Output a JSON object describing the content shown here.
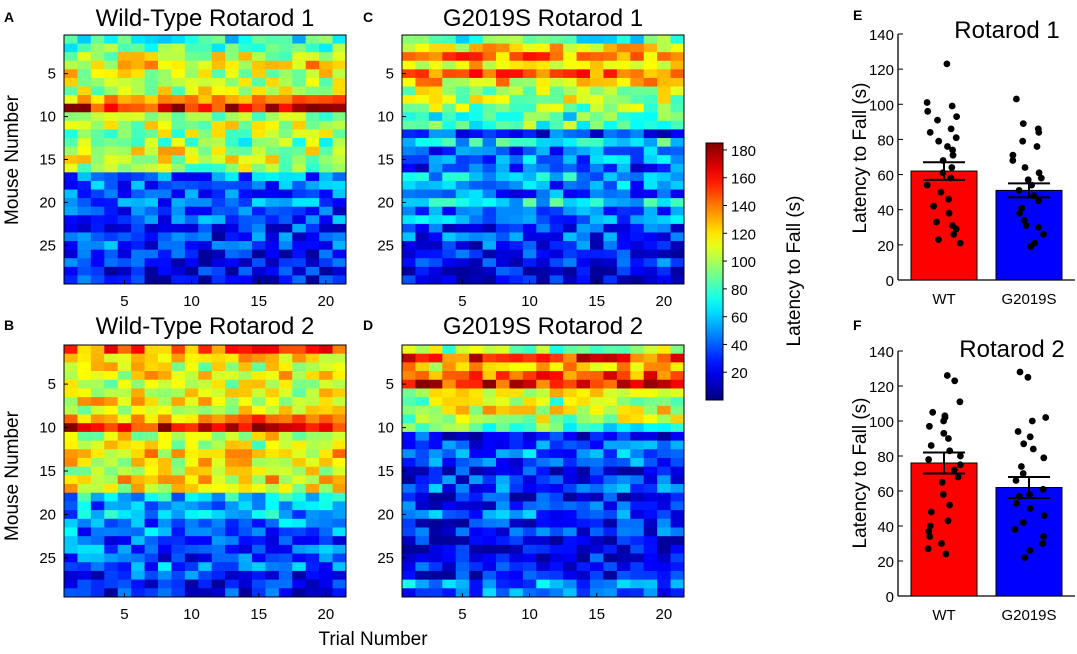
{
  "figure": {
    "shared_xlabel": "Trial Number",
    "heatmap_ylabel": "Mouse Number",
    "colorbar": {
      "label": "Latency to Fall (s)",
      "ticks": [
        "20",
        "40",
        "60",
        "80",
        "100",
        "120",
        "140",
        "160",
        "180"
      ],
      "min": 0,
      "max": 185,
      "colormap": "jet"
    }
  },
  "chart_data": [
    {
      "id": "A",
      "panel": "A",
      "type": "heatmap",
      "title": "Wild-Type Rotarod 1",
      "xlabel": "Trial Number",
      "ylabel": "Mouse Number",
      "xticks": [
        "5",
        "10",
        "15",
        "20"
      ],
      "yticks": [
        "5",
        "10",
        "15",
        "20",
        "25"
      ],
      "rows": 29,
      "cols": 21,
      "row_profile": [
        75,
        85,
        105,
        120,
        110,
        100,
        105,
        130,
        165,
        95,
        105,
        100,
        90,
        110,
        105,
        100,
        45,
        40,
        35,
        40,
        35,
        40,
        30,
        30,
        35,
        25,
        25,
        20,
        25
      ],
      "note": "Rows 1-16 mostly yellow/green (80-140 s), row 9 dark red; rows 17-29 blue (20-50 s)"
    },
    {
      "id": "B",
      "panel": "B",
      "type": "heatmap",
      "title": "Wild-Type Rotarod 2",
      "xlabel": "Trial Number",
      "ylabel": "Mouse Number",
      "xticks": [
        "5",
        "10",
        "15",
        "20"
      ],
      "yticks": [
        "5",
        "10",
        "15",
        "20",
        "25"
      ],
      "rows": 29,
      "cols": 21,
      "row_profile": [
        145,
        120,
        110,
        115,
        105,
        110,
        115,
        105,
        135,
        165,
        110,
        105,
        120,
        115,
        110,
        120,
        115,
        60,
        50,
        55,
        45,
        45,
        35,
        40,
        35,
        45,
        30,
        25,
        25
      ],
      "note": "Rows 1-17 mostly yellow/orange, row 10 dark red; rows 18-29 blue"
    },
    {
      "id": "C",
      "panel": "C",
      "type": "heatmap",
      "title": "G2019S Rotarod 1",
      "xlabel": "Trial Number",
      "ylabel": "",
      "xticks": [
        "5",
        "10",
        "15",
        "20"
      ],
      "yticks": [
        "5",
        "10",
        "15",
        "20",
        "25"
      ],
      "rows": 29,
      "cols": 21,
      "row_profile": [
        80,
        115,
        135,
        125,
        145,
        120,
        100,
        105,
        95,
        80,
        85,
        30,
        70,
        40,
        50,
        35,
        60,
        45,
        40,
        70,
        35,
        50,
        30,
        35,
        30,
        25,
        30,
        20,
        15
      ],
      "note": "Top ~10 rows yellow/orange/red, remaining rows blue to cyan"
    },
    {
      "id": "D",
      "panel": "D",
      "type": "heatmap",
      "title": "G2019S Rotarod 2",
      "xlabel": "Trial Number",
      "ylabel": "",
      "xticks": [
        "5",
        "10",
        "15",
        "20"
      ],
      "yticks": [
        "5",
        "10",
        "15",
        "20",
        "25"
      ],
      "rows": 29,
      "cols": 21,
      "row_profile": [
        95,
        155,
        120,
        145,
        160,
        110,
        100,
        115,
        100,
        80,
        25,
        35,
        45,
        35,
        20,
        30,
        40,
        20,
        30,
        40,
        25,
        30,
        20,
        15,
        25,
        30,
        20,
        50,
        40
      ],
      "note": "Top ~10 rows yellow/orange/red, rows 11-29 dark blue"
    },
    {
      "id": "E",
      "panel": "E",
      "type": "bar",
      "title": "Rotarod 1",
      "xlabel": "",
      "ylabel": "Latency to Fall (s)",
      "ylim": [
        0,
        140
      ],
      "yticks": [
        "0",
        "20",
        "40",
        "60",
        "80",
        "100",
        "120",
        "140"
      ],
      "categories": [
        "WT",
        "G2019S"
      ],
      "values": [
        62,
        51
      ],
      "sem": [
        5,
        4
      ],
      "bar_colors": [
        "#ff0000",
        "#0000ff"
      ],
      "points": [
        [
          123,
          101,
          99,
          96,
          93,
          91,
          86,
          84,
          81,
          79,
          76,
          74,
          71,
          68,
          64,
          61,
          58,
          54,
          50,
          46,
          42,
          38,
          33,
          29,
          26,
          23,
          21,
          31
        ],
        [
          103,
          89,
          86,
          84,
          79,
          76,
          71,
          68,
          64,
          61,
          57,
          54,
          51,
          48,
          45,
          41,
          38,
          34,
          30,
          26,
          21,
          19,
          31,
          58
        ]
      ]
    },
    {
      "id": "F",
      "panel": "F",
      "type": "bar",
      "title": "Rotarod 2",
      "xlabel": "",
      "ylabel": "Latency to Fall (s)",
      "ylim": [
        0,
        140
      ],
      "yticks": [
        "0",
        "20",
        "40",
        "60",
        "80",
        "100",
        "120",
        "140"
      ],
      "categories": [
        "WT",
        "G2019S"
      ],
      "values": [
        76,
        62
      ],
      "sem": [
        6,
        6
      ],
      "bar_colors": [
        "#ff0000",
        "#0000ff"
      ],
      "points": [
        [
          126,
          123,
          111,
          105,
          102,
          100,
          97,
          93,
          90,
          86,
          83,
          80,
          78,
          75,
          72,
          68,
          65,
          58,
          52,
          48,
          43,
          40,
          37,
          34,
          30,
          27,
          24,
          103
        ],
        [
          128,
          125,
          102,
          100,
          94,
          91,
          87,
          84,
          79,
          74,
          70,
          66,
          61,
          57,
          53,
          50,
          46,
          42,
          38,
          34,
          30,
          26,
          22,
          58
        ]
      ]
    }
  ]
}
